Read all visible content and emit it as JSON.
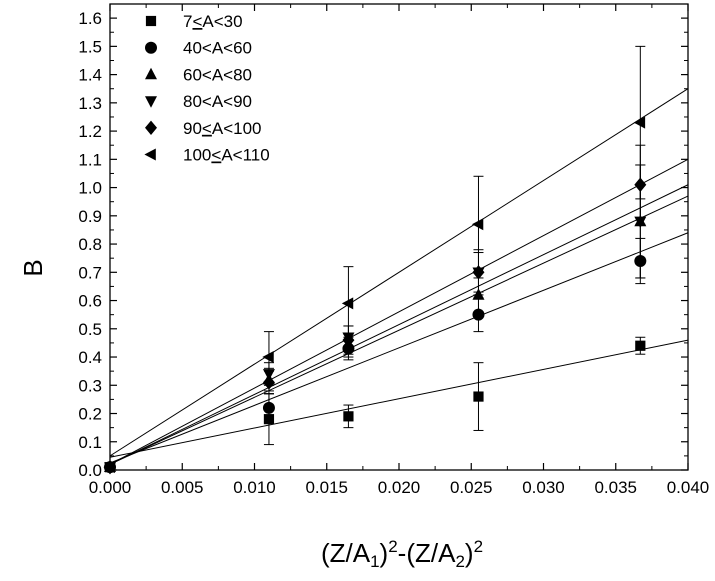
{
  "chart_data": {
    "type": "scatter",
    "title": "",
    "xlabel": {
      "parts": [
        {
          "text": "(Z/A",
          "style": "normal"
        },
        {
          "text": "1",
          "style": "sub"
        },
        {
          "text": ")",
          "style": "normal"
        },
        {
          "text": "2",
          "style": "sup"
        },
        {
          "text": "-(Z/A",
          "style": "normal"
        },
        {
          "text": "2",
          "style": "sub"
        },
        {
          "text": ")",
          "style": "normal"
        },
        {
          "text": "2",
          "style": "sup"
        }
      ]
    },
    "ylabel": "B",
    "xlim": [
      0.0,
      0.04
    ],
    "ylim": [
      0.0,
      1.65
    ],
    "x_ticks": [
      "0.000",
      "0.005",
      "0.010",
      "0.015",
      "0.020",
      "0.025",
      "0.030",
      "0.035",
      "0.040"
    ],
    "y_ticks": [
      "0.0",
      "0.1",
      "0.2",
      "0.3",
      "0.4",
      "0.5",
      "0.6",
      "0.7",
      "0.8",
      "0.9",
      "1.0",
      "1.1",
      "1.2",
      "1.3",
      "1.4",
      "1.5",
      "1.6"
    ],
    "grid": false,
    "legend_position": "top-left",
    "series": [
      {
        "name": "7≤A<30",
        "name_parts": [
          "7",
          "<",
          "A<30"
        ],
        "marker": "square",
        "x": [
          0.0,
          0.011,
          0.0165,
          0.0255,
          0.0367
        ],
        "y": [
          0.01,
          0.18,
          0.19,
          0.26,
          0.44
        ],
        "err": [
          0,
          0.09,
          0.04,
          0.12,
          0.03
        ],
        "fit": {
          "x": [
            0.0,
            0.04
          ],
          "y": [
            0.045,
            0.46
          ]
        }
      },
      {
        "name": "40<A<60",
        "name_parts": [
          "40<A<60"
        ],
        "marker": "circle",
        "x": [
          0.0,
          0.011,
          0.0165,
          0.0255,
          0.0367
        ],
        "y": [
          0.01,
          0.22,
          0.43,
          0.55,
          0.74
        ],
        "err": [
          0,
          0.05,
          0.04,
          0.06,
          0.08
        ],
        "fit": {
          "x": [
            0.0,
            0.04
          ],
          "y": [
            0.025,
            0.84
          ]
        }
      },
      {
        "name": "60<A<80",
        "name_parts": [
          "60<A<80"
        ],
        "marker": "triangle-up",
        "x": [
          0.0,
          0.011,
          0.0165,
          0.0255,
          0.0367
        ],
        "y": [
          0.01,
          0.32,
          0.44,
          0.62,
          0.88
        ],
        "err": [
          0,
          0.04,
          0.04,
          0.06,
          0.2
        ],
        "fit": {
          "x": [
            0.0,
            0.04
          ],
          "y": [
            0.02,
            0.97
          ]
        }
      },
      {
        "name": "80<A<90",
        "name_parts": [
          "80<A<90"
        ],
        "marker": "triangle-down",
        "x": [
          0.0,
          0.011,
          0.0165,
          0.0255,
          0.0367
        ],
        "y": [
          0.01,
          0.34,
          0.47,
          0.7,
          0.88
        ],
        "err": [
          0,
          0.04,
          0.04,
          0.07,
          0.2
        ],
        "fit": {
          "x": [
            0.0,
            0.04
          ],
          "y": [
            0.02,
            1.01
          ]
        }
      },
      {
        "name": "90≤A<100",
        "name_parts": [
          "90",
          "<",
          "A<100"
        ],
        "marker": "diamond",
        "x": [
          0.0,
          0.011,
          0.0165,
          0.0255,
          0.0367
        ],
        "y": [
          0.01,
          0.31,
          0.46,
          0.7,
          1.01
        ],
        "err": [
          0,
          0.04,
          0.05,
          0.08,
          0.14
        ],
        "fit": {
          "x": [
            0.0,
            0.04
          ],
          "y": [
            0.02,
            1.1
          ]
        }
      },
      {
        "name": "100≤A<110",
        "name_parts": [
          "100",
          "<",
          "A<110"
        ],
        "marker": "triangle-left",
        "x": [
          0.0,
          0.011,
          0.0165,
          0.0255,
          0.0367
        ],
        "y": [
          0.01,
          0.4,
          0.59,
          0.87,
          1.23
        ],
        "err": [
          0,
          0.09,
          0.13,
          0.17,
          0.27
        ],
        "fit": {
          "x": [
            0.0,
            0.04
          ],
          "y": [
            0.05,
            1.35
          ]
        }
      }
    ]
  }
}
